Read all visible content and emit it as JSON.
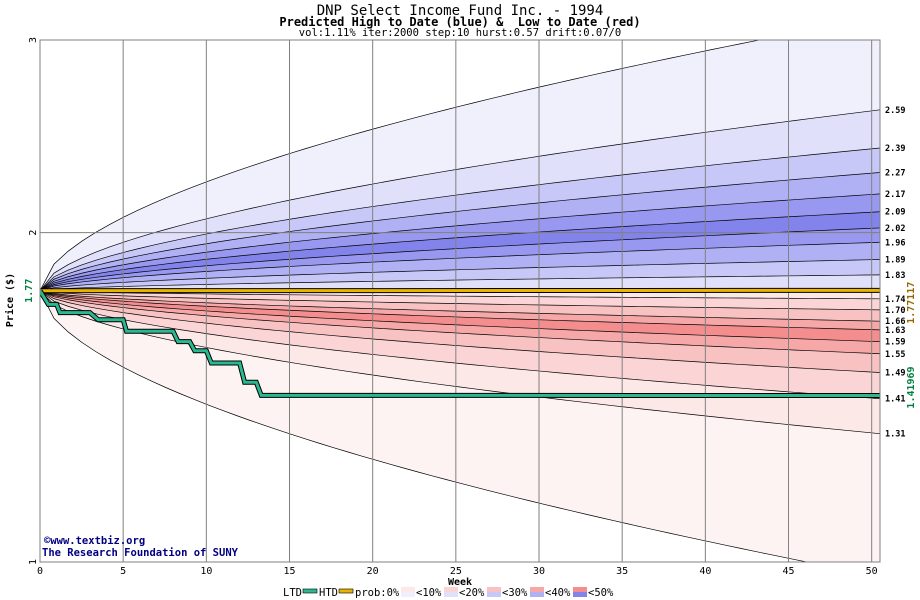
{
  "chart_data": {
    "type": "area",
    "title": "DNP Select Income Fund Inc. - 1994",
    "subtitle": "Predicted High to Date (blue) &  Low to Date (red)",
    "params": "vol:1.11% iter:2000 step:10 hurst:0.57 drift:0.07/0",
    "xlabel": "Week",
    "ylabel": "Price ($)",
    "log_scale_y": true,
    "xlim": [
      0,
      50.5
    ],
    "ylim": [
      1,
      3
    ],
    "x_ticks": [
      "0",
      "5",
      "10",
      "15",
      "20",
      "25",
      "30",
      "35",
      "40",
      "45",
      "50"
    ],
    "y_ticks": [
      "1",
      "2",
      "3"
    ],
    "start_price_label": "1.77",
    "htd_end_label": "1.77117",
    "ltd_end_label": "1.41969",
    "high_bands": [
      {
        "end": 3.15,
        "label": ""
      },
      {
        "end": 2.59,
        "label": "2.59"
      },
      {
        "end": 2.39,
        "label": "2.39"
      },
      {
        "end": 2.27,
        "label": "2.27"
      },
      {
        "end": 2.17,
        "label": "2.17"
      },
      {
        "end": 2.09,
        "label": "2.09"
      },
      {
        "end": 2.02,
        "label": "2.02"
      },
      {
        "end": 1.96,
        "label": "1.96"
      },
      {
        "end": 1.89,
        "label": "1.89"
      },
      {
        "end": 1.83,
        "label": "1.83"
      }
    ],
    "low_bands": [
      {
        "end": 1.74,
        "label": "1.74"
      },
      {
        "end": 1.7,
        "label": "1.70"
      },
      {
        "end": 1.66,
        "label": "1.66"
      },
      {
        "end": 1.63,
        "label": "1.63"
      },
      {
        "end": 1.59,
        "label": "1.59"
      },
      {
        "end": 1.55,
        "label": "1.55"
      },
      {
        "end": 1.49,
        "label": "1.49"
      },
      {
        "end": 1.41,
        "label": "1.41"
      },
      {
        "end": 1.31,
        "label": "1.31"
      },
      {
        "end": 0.97,
        "label": ""
      }
    ],
    "htd_series": {
      "name": "HTD",
      "points": [
        [
          0,
          1.77
        ],
        [
          50.5,
          1.77117
        ]
      ]
    },
    "ltd_series": {
      "name": "LTD",
      "points": [
        [
          0,
          1.77
        ],
        [
          0.5,
          1.72
        ],
        [
          1,
          1.72
        ],
        [
          1.2,
          1.69
        ],
        [
          3,
          1.69
        ],
        [
          3.5,
          1.665
        ],
        [
          5,
          1.665
        ],
        [
          5.2,
          1.625
        ],
        [
          8,
          1.625
        ],
        [
          8.3,
          1.59
        ],
        [
          9,
          1.59
        ],
        [
          9.3,
          1.56
        ],
        [
          10,
          1.56
        ],
        [
          10.3,
          1.52
        ],
        [
          12,
          1.52
        ],
        [
          12.3,
          1.46
        ],
        [
          13,
          1.46
        ],
        [
          13.3,
          1.42
        ],
        [
          50.5,
          1.41969
        ]
      ]
    },
    "legend": [
      "LTD",
      "HTD",
      "prob:0%",
      "<10%",
      "<20%",
      "<30%",
      "<40%",
      "<50%"
    ],
    "colors": {
      "high": [
        "#f0f0fd",
        "#e0e0fb",
        "#c8c8f8",
        "#b0b0f5",
        "#9898f0",
        "#8383ec",
        "#9898f0",
        "#b0b0f5",
        "#c8c8f8",
        "#e0e0fb"
      ],
      "low": [
        "#fde8e8",
        "#fbd5d5",
        "#f9c2c2",
        "#f6a8a8",
        "#f48e8e",
        "#f6a8a8",
        "#f9c2c2",
        "#fbd5d5",
        "#fde8e8",
        "#fef3f3"
      ],
      "htd": "#e8b400",
      "ltd": "#2ab890",
      "htd_label": "#996600",
      "ltd_label": "#008040"
    }
  },
  "credits": {
    "line1": "©www.textbiz.org",
    "line2": "The Research Foundation of SUNY"
  }
}
